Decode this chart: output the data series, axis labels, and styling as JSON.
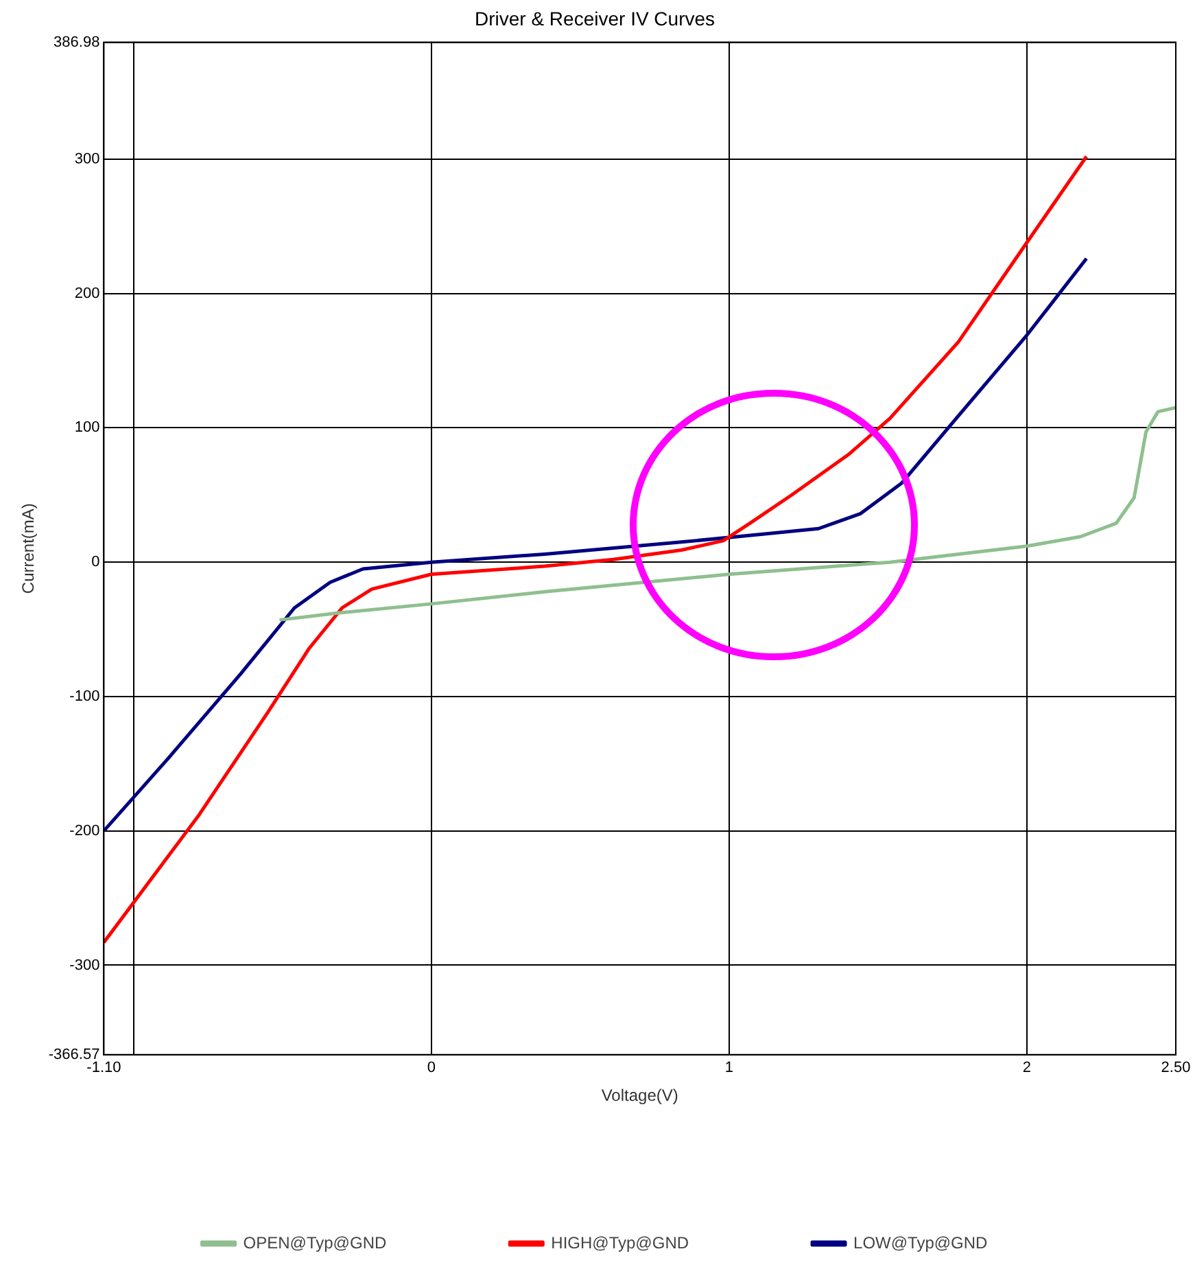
{
  "chart_data": {
    "type": "line",
    "title": "Driver & Receiver IV Curves",
    "xlabel": "Voltage(V)",
    "ylabel": "Current(mA)",
    "xlim": [
      -1.1,
      2.5
    ],
    "xticks": [
      {
        "value": -1.1,
        "label": "-1.10"
      },
      {
        "value": -1,
        "label": null
      },
      0,
      1,
      2,
      {
        "value": 2.5,
        "label": "2.50"
      }
    ],
    "ylim": [
      -366.57,
      386.98
    ],
    "yticks": [
      {
        "value": -366.57,
        "label": "-366.57"
      },
      -300,
      -200,
      -100,
      0,
      100,
      200,
      300,
      {
        "value": 386.98,
        "label": "386.98"
      }
    ],
    "grid": true,
    "legend": "bottom",
    "marker": "none",
    "line_style": "solid",
    "series": [
      {
        "name": "OPEN@Typ@GND",
        "color": "#8fbf8f",
        "x": [
          -0.51,
          -0.32,
          0,
          0.38,
          1,
          1.54,
          2,
          2.18,
          2.3,
          2.36,
          2.4,
          2.44,
          2.5
        ],
        "values": [
          -43,
          -38,
          -31,
          -22,
          -9,
          0,
          12,
          19,
          29,
          48,
          97,
          112,
          115
        ]
      },
      {
        "name": "HIGH@Typ@GND",
        "color": "#ff0000",
        "x": [
          -1.1,
          -0.78,
          -0.55,
          -0.41,
          -0.3,
          -0.2,
          0,
          0.38,
          0.61,
          0.84,
          0.98,
          1.07,
          1.21,
          1.4,
          1.54,
          1.77,
          2,
          2.2
        ],
        "values": [
          -283,
          -188,
          -112,
          -64,
          -34,
          -20,
          -9,
          -3,
          2,
          9,
          16,
          29,
          50,
          80,
          107,
          164,
          238,
          302
        ]
      },
      {
        "name": "LOW@Typ@GND",
        "color": "#000080",
        "x": [
          -1.1,
          -0.88,
          -0.64,
          -0.46,
          -0.34,
          -0.23,
          0,
          0.38,
          0.84,
          1.12,
          1.3,
          1.44,
          1.58,
          1.77,
          2,
          2.2
        ],
        "values": [
          -200,
          -145,
          -83,
          -34,
          -15,
          -5,
          0,
          6,
          15,
          21,
          25,
          36,
          59,
          109,
          169,
          226
        ]
      }
    ]
  }
}
